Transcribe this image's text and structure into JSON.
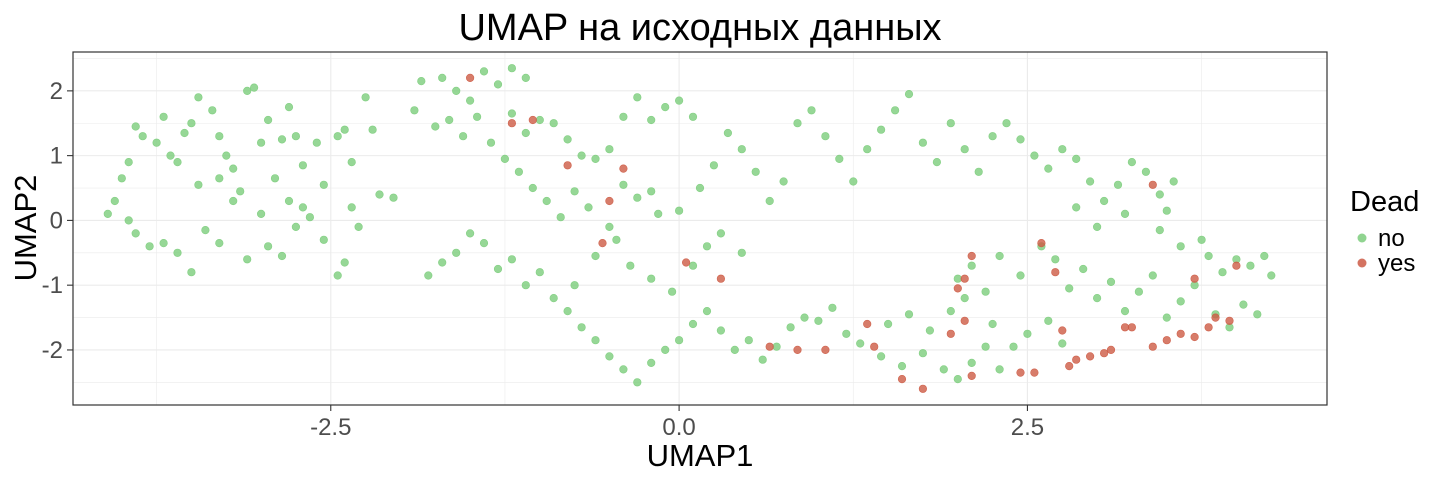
{
  "chart_data": {
    "type": "scatter",
    "title": "UMAP на исходных данных",
    "xlabel": "UMAP1",
    "ylabel": "UMAP2",
    "xlim": [
      -4.35,
      4.65
    ],
    "ylim": [
      -2.85,
      2.6
    ],
    "x_ticks": [
      -2.5,
      0.0,
      2.5
    ],
    "x_tick_labels": [
      "-2.5",
      "0.0",
      "2.5"
    ],
    "y_ticks": [
      -2,
      -1,
      0,
      1,
      2
    ],
    "y_tick_labels": [
      "-2",
      "-1",
      "0",
      "1",
      "2"
    ],
    "grid": true,
    "legend": {
      "title": "Dead",
      "position": "right"
    },
    "series": [
      {
        "name": "no",
        "color": "#7CCD7C",
        "points": [
          [
            -4.1,
            0.1
          ],
          [
            -4.05,
            0.3
          ],
          [
            -4.0,
            0.65
          ],
          [
            -3.95,
            0.9
          ],
          [
            -3.9,
            1.45
          ],
          [
            -3.85,
            1.3
          ],
          [
            -3.75,
            1.2
          ],
          [
            -3.7,
            1.6
          ],
          [
            -3.65,
            1.0
          ],
          [
            -3.6,
            0.9
          ],
          [
            -3.55,
            1.35
          ],
          [
            -3.5,
            1.5
          ],
          [
            -3.45,
            1.9
          ],
          [
            -3.35,
            1.7
          ],
          [
            -3.3,
            1.3
          ],
          [
            -3.25,
            1.0
          ],
          [
            -3.2,
            0.8
          ],
          [
            -3.1,
            2.0
          ],
          [
            -3.05,
            2.05
          ],
          [
            -3.0,
            1.2
          ],
          [
            -2.95,
            1.55
          ],
          [
            -2.85,
            1.25
          ],
          [
            -2.8,
            1.75
          ],
          [
            -2.75,
            1.3
          ],
          [
            -2.7,
            0.85
          ],
          [
            -2.6,
            1.2
          ],
          [
            -2.55,
            0.55
          ],
          [
            -2.45,
            1.3
          ],
          [
            -2.4,
            1.4
          ],
          [
            -2.35,
            0.9
          ],
          [
            -2.25,
            1.9
          ],
          [
            -2.2,
            1.4
          ],
          [
            -2.15,
            0.4
          ],
          [
            -2.05,
            0.35
          ],
          [
            -3.95,
            0.0
          ],
          [
            -3.9,
            -0.2
          ],
          [
            -3.8,
            -0.4
          ],
          [
            -3.7,
            -0.35
          ],
          [
            -3.6,
            -0.5
          ],
          [
            -3.5,
            -0.8
          ],
          [
            -3.4,
            -0.15
          ],
          [
            -3.3,
            -0.35
          ],
          [
            -3.2,
            0.3
          ],
          [
            -3.1,
            -0.6
          ],
          [
            -3.0,
            0.1
          ],
          [
            -2.95,
            -0.4
          ],
          [
            -2.85,
            -0.55
          ],
          [
            -2.75,
            -0.1
          ],
          [
            -2.65,
            0.05
          ],
          [
            -2.55,
            -0.3
          ],
          [
            -2.45,
            -0.85
          ],
          [
            -2.4,
            -0.65
          ],
          [
            -2.35,
            0.2
          ],
          [
            -2.3,
            -0.1
          ],
          [
            -3.45,
            0.55
          ],
          [
            -3.3,
            0.65
          ],
          [
            -3.15,
            0.45
          ],
          [
            -2.9,
            0.65
          ],
          [
            -2.8,
            0.3
          ],
          [
            -2.7,
            0.2
          ],
          [
            -1.85,
            2.15
          ],
          [
            -1.7,
            2.2
          ],
          [
            -1.6,
            2.0
          ],
          [
            -1.5,
            1.85
          ],
          [
            -1.4,
            2.3
          ],
          [
            -1.3,
            2.1
          ],
          [
            -1.2,
            2.35
          ],
          [
            -1.1,
            2.2
          ],
          [
            -1.9,
            1.7
          ],
          [
            -1.75,
            1.45
          ],
          [
            -1.65,
            1.55
          ],
          [
            -1.55,
            1.3
          ],
          [
            -1.45,
            1.6
          ],
          [
            -1.35,
            1.2
          ],
          [
            -1.2,
            1.65
          ],
          [
            -1.1,
            1.35
          ],
          [
            -1.0,
            1.55
          ],
          [
            -0.9,
            1.5
          ],
          [
            -0.8,
            1.25
          ],
          [
            -0.7,
            1.0
          ],
          [
            -0.6,
            0.95
          ],
          [
            -0.5,
            1.1
          ],
          [
            -0.4,
            1.6
          ],
          [
            -0.3,
            1.9
          ],
          [
            -0.2,
            1.55
          ],
          [
            -0.1,
            1.75
          ],
          [
            0.0,
            1.85
          ],
          [
            0.1,
            1.6
          ],
          [
            -1.25,
            0.95
          ],
          [
            -1.15,
            0.75
          ],
          [
            -1.05,
            0.5
          ],
          [
            -0.95,
            0.3
          ],
          [
            -0.85,
            0.05
          ],
          [
            -0.75,
            0.45
          ],
          [
            -0.65,
            0.2
          ],
          [
            -0.5,
            -0.1
          ],
          [
            -0.4,
            0.55
          ],
          [
            -0.3,
            0.35
          ],
          [
            -0.2,
            0.45
          ],
          [
            -0.15,
            0.1
          ],
          [
            0.0,
            0.15
          ],
          [
            0.15,
            0.5
          ],
          [
            0.25,
            0.85
          ],
          [
            0.35,
            1.35
          ],
          [
            0.45,
            1.1
          ],
          [
            0.55,
            0.75
          ],
          [
            0.65,
            0.3
          ],
          [
            0.75,
            0.6
          ],
          [
            0.85,
            1.5
          ],
          [
            0.95,
            1.7
          ],
          [
            1.05,
            1.3
          ],
          [
            1.15,
            0.95
          ],
          [
            1.25,
            0.6
          ],
          [
            1.35,
            1.1
          ],
          [
            1.45,
            1.4
          ],
          [
            1.55,
            1.7
          ],
          [
            1.65,
            1.95
          ],
          [
            1.75,
            1.2
          ],
          [
            1.85,
            0.9
          ],
          [
            1.95,
            1.5
          ],
          [
            2.05,
            1.1
          ],
          [
            2.15,
            0.75
          ],
          [
            2.25,
            1.3
          ],
          [
            2.35,
            1.5
          ],
          [
            2.45,
            1.25
          ],
          [
            2.55,
            1.0
          ],
          [
            2.65,
            0.8
          ],
          [
            2.75,
            1.1
          ],
          [
            2.85,
            0.95
          ],
          [
            2.95,
            0.6
          ],
          [
            3.05,
            0.3
          ],
          [
            3.15,
            0.55
          ],
          [
            3.25,
            0.9
          ],
          [
            3.35,
            0.75
          ],
          [
            3.45,
            0.4
          ],
          [
            3.5,
            0.15
          ],
          [
            3.55,
            0.6
          ],
          [
            3.2,
            0.1
          ],
          [
            3.0,
            -0.1
          ],
          [
            2.85,
            0.2
          ],
          [
            -1.8,
            -0.85
          ],
          [
            -1.7,
            -0.65
          ],
          [
            -1.6,
            -0.5
          ],
          [
            -1.5,
            -0.2
          ],
          [
            -1.4,
            -0.35
          ],
          [
            -1.3,
            -0.75
          ],
          [
            -1.2,
            -0.6
          ],
          [
            -1.1,
            -1.0
          ],
          [
            -1.0,
            -0.8
          ],
          [
            -0.9,
            -1.2
          ],
          [
            -0.8,
            -1.4
          ],
          [
            -0.7,
            -1.65
          ],
          [
            -0.6,
            -1.85
          ],
          [
            -0.5,
            -2.1
          ],
          [
            -0.4,
            -2.3
          ],
          [
            -0.3,
            -2.5
          ],
          [
            -0.2,
            -2.2
          ],
          [
            -0.1,
            -2.0
          ],
          [
            0.0,
            -1.85
          ],
          [
            0.1,
            -1.6
          ],
          [
            0.2,
            -1.4
          ],
          [
            0.3,
            -1.7
          ],
          [
            0.4,
            -2.0
          ],
          [
            0.5,
            -1.85
          ],
          [
            0.6,
            -2.15
          ],
          [
            0.7,
            -1.95
          ],
          [
            0.8,
            -1.65
          ],
          [
            0.9,
            -1.5
          ],
          [
            1.0,
            -1.55
          ],
          [
            1.1,
            -1.35
          ],
          [
            1.2,
            -1.75
          ],
          [
            1.3,
            -1.9
          ],
          [
            1.45,
            -2.1
          ],
          [
            1.6,
            -2.25
          ],
          [
            1.75,
            -2.05
          ],
          [
            1.9,
            -2.3
          ],
          [
            2.0,
            -2.45
          ],
          [
            2.1,
            -2.2
          ],
          [
            2.2,
            -1.95
          ],
          [
            2.3,
            -2.3
          ],
          [
            -0.75,
            -1.0
          ],
          [
            -0.6,
            -0.55
          ],
          [
            -0.45,
            -0.3
          ],
          [
            -0.35,
            -0.7
          ],
          [
            -0.2,
            -0.9
          ],
          [
            -0.05,
            -1.1
          ],
          [
            0.1,
            -0.7
          ],
          [
            0.2,
            -0.4
          ],
          [
            0.3,
            -0.2
          ],
          [
            0.45,
            -0.5
          ],
          [
            2.0,
            -0.9
          ],
          [
            2.1,
            -0.7
          ],
          [
            2.2,
            -1.1
          ],
          [
            2.3,
            -0.55
          ],
          [
            2.45,
            -0.85
          ],
          [
            2.6,
            -0.4
          ],
          [
            2.7,
            -0.6
          ],
          [
            2.8,
            -1.05
          ],
          [
            2.9,
            -0.75
          ],
          [
            3.0,
            -1.2
          ],
          [
            3.1,
            -0.95
          ],
          [
            3.2,
            -1.4
          ],
          [
            3.3,
            -1.1
          ],
          [
            3.4,
            -0.85
          ],
          [
            3.5,
            -1.5
          ],
          [
            3.6,
            -1.25
          ],
          [
            3.7,
            -1.0
          ],
          [
            3.8,
            -0.55
          ],
          [
            3.9,
            -0.8
          ],
          [
            4.0,
            -0.6
          ],
          [
            4.1,
            -0.7
          ],
          [
            4.2,
            -0.55
          ],
          [
            4.25,
            -0.85
          ],
          [
            3.85,
            -1.45
          ],
          [
            3.95,
            -1.65
          ],
          [
            4.05,
            -1.3
          ],
          [
            4.15,
            -1.45
          ],
          [
            3.75,
            -0.3
          ],
          [
            3.6,
            -0.4
          ],
          [
            3.45,
            -0.15
          ],
          [
            2.5,
            -1.75
          ],
          [
            2.65,
            -1.55
          ],
          [
            2.4,
            -1.95
          ],
          [
            2.25,
            -1.6
          ],
          [
            2.75,
            -1.9
          ],
          [
            1.8,
            -1.7
          ],
          [
            1.95,
            -1.4
          ],
          [
            2.05,
            -1.2
          ],
          [
            1.65,
            -1.45
          ],
          [
            1.5,
            -1.6
          ]
        ]
      },
      {
        "name": "yes",
        "color": "#CD5B45",
        "points": [
          [
            -1.5,
            2.2
          ],
          [
            -1.2,
            1.5
          ],
          [
            -1.05,
            1.55
          ],
          [
            -0.8,
            0.85
          ],
          [
            -0.4,
            0.8
          ],
          [
            -0.5,
            0.3
          ],
          [
            -0.55,
            -0.35
          ],
          [
            0.05,
            -0.65
          ],
          [
            0.3,
            -0.9
          ],
          [
            2.1,
            -0.55
          ],
          [
            2.05,
            -0.9
          ],
          [
            2.0,
            -1.05
          ],
          [
            2.05,
            -1.55
          ],
          [
            1.95,
            -1.75
          ],
          [
            1.35,
            -1.6
          ],
          [
            1.4,
            -1.95
          ],
          [
            0.85,
            -2.0
          ],
          [
            1.05,
            -2.0
          ],
          [
            0.65,
            -1.95
          ],
          [
            1.6,
            -2.45
          ],
          [
            1.75,
            -2.6
          ],
          [
            2.1,
            -2.4
          ],
          [
            2.45,
            -2.35
          ],
          [
            2.6,
            -0.35
          ],
          [
            2.7,
            -0.8
          ],
          [
            2.75,
            -1.7
          ],
          [
            2.8,
            -2.25
          ],
          [
            2.85,
            -2.15
          ],
          [
            2.95,
            -2.1
          ],
          [
            3.1,
            -2.0
          ],
          [
            3.25,
            -1.65
          ],
          [
            3.4,
            -1.95
          ],
          [
            3.5,
            -1.85
          ],
          [
            3.6,
            -1.75
          ],
          [
            3.7,
            -1.8
          ],
          [
            3.8,
            -1.65
          ],
          [
            3.85,
            -1.5
          ],
          [
            3.7,
            -0.9
          ],
          [
            4.0,
            -0.7
          ],
          [
            3.4,
            0.55
          ],
          [
            3.2,
            -1.65
          ],
          [
            2.55,
            -2.35
          ],
          [
            3.05,
            -2.05
          ],
          [
            3.95,
            -1.55
          ]
        ]
      }
    ]
  }
}
